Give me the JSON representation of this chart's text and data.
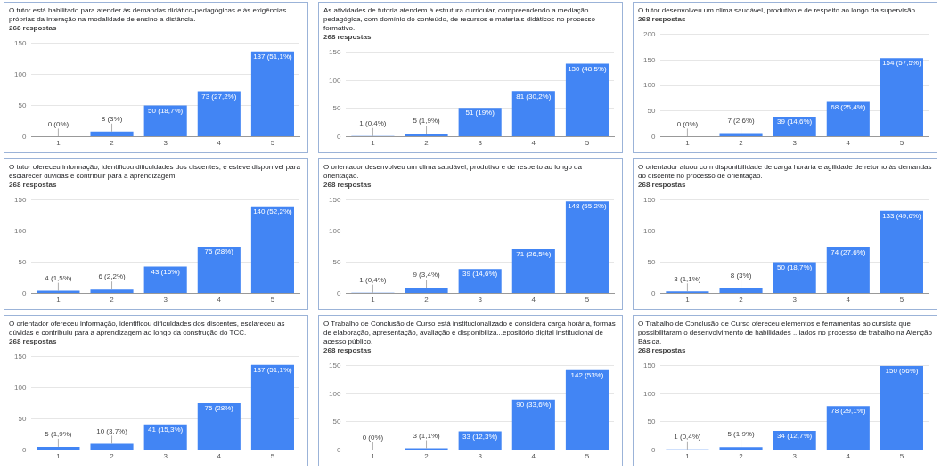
{
  "chart_data": [
    {
      "type": "bar",
      "title": "O tutor está habilitado para atender às demandas didático-pedagógicas e às exigências próprias da interação na modalidade de ensino a distância.",
      "subtitle": "268 respostas",
      "categories": [
        "1",
        "2",
        "3",
        "4",
        "5"
      ],
      "values": [
        0,
        8,
        50,
        73,
        137
      ],
      "value_labels": [
        "0 (0%)",
        "8 (3%)",
        "50 (18,7%)",
        "73 (27,2%)",
        "137 (51,1%)"
      ],
      "color": "#4285f4",
      "ylim": [
        0,
        150
      ],
      "yticks": [
        0,
        50,
        100,
        150
      ],
      "grid": "y"
    },
    {
      "type": "bar",
      "title": "As atividades de tutoria atendem à estrutura curricular, compreendendo a mediação pedagógica, com domínio do conteúdo, de recursos e materiais didáticos no processo formativo.",
      "subtitle": "268 respostas",
      "categories": [
        "1",
        "2",
        "3",
        "4",
        "5"
      ],
      "values": [
        1,
        5,
        51,
        81,
        130
      ],
      "value_labels": [
        "1 (0,4%)",
        "5 (1,9%)",
        "51 (19%)",
        "81 (30,2%)",
        "130 (48,5%)"
      ],
      "color": "#4285f4",
      "ylim": [
        0,
        150
      ],
      "yticks": [
        0,
        50,
        100,
        150
      ],
      "grid": "y"
    },
    {
      "type": "bar",
      "title": "O tutor desenvolveu um clima saudável, produtivo e de respeito ao longo da supervisão.",
      "subtitle": "268 respostas",
      "categories": [
        "1",
        "2",
        "3",
        "4",
        "5"
      ],
      "values": [
        0,
        7,
        39,
        68,
        154
      ],
      "value_labels": [
        "0 (0%)",
        "7 (2,6%)",
        "39 (14,6%)",
        "68 (25,4%)",
        "154 (57,5%)"
      ],
      "color": "#4285f4",
      "ylim": [
        0,
        200
      ],
      "yticks": [
        0,
        50,
        100,
        150,
        200
      ],
      "grid": "y"
    },
    {
      "type": "bar",
      "title": "O tutor ofereceu informação, identificou dificuldades dos discentes, e esteve disponível para esclarecer dúvidas e contribuir para a aprendizagem.",
      "subtitle": "268 respostas",
      "categories": [
        "1",
        "2",
        "3",
        "4",
        "5"
      ],
      "values": [
        4,
        6,
        43,
        75,
        140
      ],
      "value_labels": [
        "4 (1,5%)",
        "6 (2,2%)",
        "43 (16%)",
        "75 (28%)",
        "140 (52,2%)"
      ],
      "color": "#4285f4",
      "ylim": [
        0,
        150
      ],
      "yticks": [
        0,
        50,
        100,
        150
      ],
      "grid": "y"
    },
    {
      "type": "bar",
      "title": "O orientador desenvolveu um clima saudável, produtivo e de respeito ao longo da orientação.",
      "subtitle": "268 respostas",
      "categories": [
        "1",
        "2",
        "3",
        "4",
        "5"
      ],
      "values": [
        1,
        9,
        39,
        71,
        148
      ],
      "value_labels": [
        "1 (0,4%)",
        "9 (3,4%)",
        "39 (14,6%)",
        "71 (26,5%)",
        "148 (55,2%)"
      ],
      "color": "#4285f4",
      "ylim": [
        0,
        150
      ],
      "yticks": [
        0,
        50,
        100,
        150
      ],
      "grid": "y"
    },
    {
      "type": "bar",
      "title": "O orientador atuou com disponibilidade de carga horária e agilidade de retorno às demandas do discente no processo de orientação.",
      "subtitle": "268 respostas",
      "categories": [
        "1",
        "2",
        "3",
        "4",
        "5"
      ],
      "values": [
        3,
        8,
        50,
        74,
        133
      ],
      "value_labels": [
        "3 (1,1%)",
        "8 (3%)",
        "50 (18,7%)",
        "74 (27,6%)",
        "133 (49,6%)"
      ],
      "color": "#4285f4",
      "ylim": [
        0,
        150
      ],
      "yticks": [
        0,
        50,
        100,
        150
      ],
      "grid": "y"
    },
    {
      "type": "bar",
      "title": "O orientador ofereceu informação, identificou dificuldades dos discentes, esclareceu as dúvidas e contribuiu para a aprendizagem ao longo da construção do TCC.",
      "subtitle": "268 respostas",
      "categories": [
        "1",
        "2",
        "3",
        "4",
        "5"
      ],
      "values": [
        5,
        10,
        41,
        75,
        137
      ],
      "value_labels": [
        "5 (1,9%)",
        "10 (3,7%)",
        "41 (15,3%)",
        "75 (28%)",
        "137 (51,1%)"
      ],
      "color": "#4285f4",
      "ylim": [
        0,
        150
      ],
      "yticks": [
        0,
        50,
        100,
        150
      ],
      "grid": "y"
    },
    {
      "type": "bar",
      "title": "O Trabalho de Conclusão de Curso está institucionalizado e considera carga horária, formas de elaboração, apresentação, avaliação e disponibiliza...epositório digital institucional de acesso público.",
      "subtitle": "268 respostas",
      "categories": [
        "1",
        "2",
        "3",
        "4",
        "5"
      ],
      "values": [
        0,
        3,
        33,
        90,
        142
      ],
      "value_labels": [
        "0 (0%)",
        "3 (1,1%)",
        "33 (12,3%)",
        "90 (33,6%)",
        "142 (53%)"
      ],
      "color": "#4285f4",
      "ylim": [
        0,
        150
      ],
      "yticks": [
        0,
        50,
        100,
        150
      ],
      "grid": "y"
    },
    {
      "type": "bar",
      "title": "O Trabalho de Conclusão de Curso ofereceu elementos e ferramentas ao cursista que possibilitaram o desenvolvimento de habilidades ...iados no processo de trabalho na Atenção Básica.",
      "subtitle": "268 respostas",
      "categories": [
        "1",
        "2",
        "3",
        "4",
        "5"
      ],
      "values": [
        1,
        5,
        34,
        78,
        150
      ],
      "value_labels": [
        "1 (0,4%)",
        "5 (1,9%)",
        "34 (12,7%)",
        "78 (29,1%)",
        "150 (56%)"
      ],
      "color": "#4285f4",
      "ylim": [
        0,
        150
      ],
      "yticks": [
        0,
        50,
        100,
        150
      ],
      "grid": "y"
    }
  ]
}
